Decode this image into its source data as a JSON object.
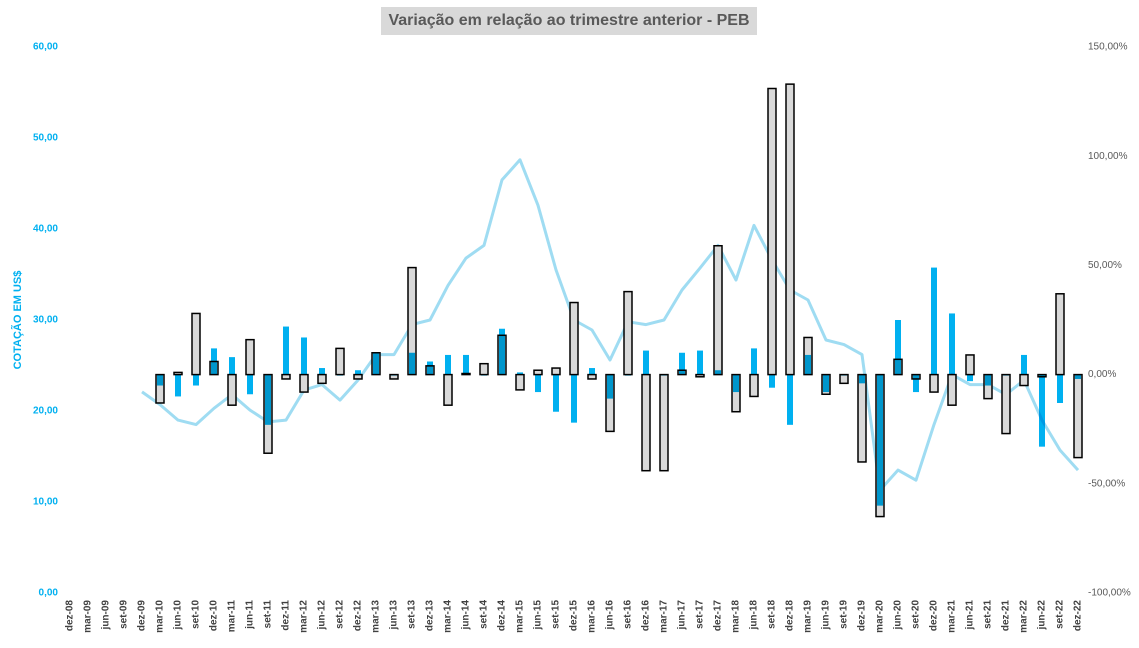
{
  "chart_data": {
    "type": "bar",
    "title": "Variação em relação ao trimestre anterior - PEB",
    "ylabel": "COTAÇÃO EM US$",
    "categories": [
      "dez-08",
      "mar-09",
      "jun-09",
      "set-09",
      "dez-09",
      "mar-10",
      "jun-10",
      "set-10",
      "dez-10",
      "mar-11",
      "jun-11",
      "set-11",
      "dez-11",
      "mar-12",
      "jun-12",
      "set-12",
      "dez-12",
      "mar-13",
      "jun-13",
      "set-13",
      "dez-13",
      "mar-14",
      "jun-14",
      "set-14",
      "dez-14",
      "mar-15",
      "jun-15",
      "set-15",
      "dez-15",
      "mar-16",
      "jun-16",
      "set-16",
      "dez-16",
      "mar-17",
      "jun-17",
      "set-17",
      "dez-17",
      "mar-18",
      "jun-18",
      "set-18",
      "dez-18",
      "mar-19",
      "jun-19",
      "set-19",
      "dez-19",
      "mar-20",
      "jun-20",
      "set-20",
      "dez-20",
      "mar-21",
      "jun-21",
      "set-21",
      "dez-21",
      "mar-22",
      "jun-22",
      "set-22",
      "dez-22"
    ],
    "ylim": [
      0,
      60
    ],
    "yticks": [
      {
        "value": 0,
        "label": "0,00"
      },
      {
        "value": 10,
        "label": "10,00"
      },
      {
        "value": 20,
        "label": "20,00"
      },
      {
        "value": 30,
        "label": "30,00"
      },
      {
        "value": 40,
        "label": "40,00"
      },
      {
        "value": 50,
        "label": "50,00"
      },
      {
        "value": 60,
        "label": "60,00"
      }
    ],
    "y2lim": [
      -100,
      150
    ],
    "y2ticks": [
      {
        "value": -100,
        "label": "-100,00%"
      },
      {
        "value": -50,
        "label": "-50,00%"
      },
      {
        "value": 0,
        "label": "0,00%"
      },
      {
        "value": 50,
        "label": "50,00%"
      },
      {
        "value": 100,
        "label": "100,00%"
      },
      {
        "value": 150,
        "label": "150,00%"
      }
    ],
    "series": [
      {
        "type": "line",
        "color": "#9fdcf2",
        "values": [
          null,
          null,
          null,
          null,
          22.1,
          20.7,
          19.0,
          18.5,
          20.3,
          21.8,
          20.1,
          18.8,
          19.0,
          22.3,
          22.9,
          21.2,
          23.4,
          26.2,
          26.2,
          29.5,
          30.0,
          33.8,
          36.8,
          38.2,
          45.4,
          47.6,
          42.6,
          35.5,
          30.0,
          28.9,
          25.6,
          29.8,
          29.5,
          30.0,
          33.3,
          35.7,
          38.2,
          34.4,
          40.4,
          36.6,
          33.3,
          32.2,
          27.8,
          27.3,
          26.2,
          11.3,
          13.5,
          12.4,
          18.5,
          24.0,
          22.9,
          22.9,
          21.8,
          23.4,
          19.0,
          15.7,
          13.5
        ]
      },
      {
        "type": "bar",
        "axis": "y2",
        "color": "#00b0f0",
        "values": [
          null,
          null,
          null,
          null,
          null,
          -5,
          -10,
          -5,
          12,
          8,
          -9,
          -23,
          22,
          17,
          3,
          0,
          2,
          10,
          0,
          10,
          6,
          9,
          9,
          0,
          21,
          1,
          -8,
          -17,
          -22,
          3,
          -11,
          0,
          11,
          0,
          10,
          11,
          2,
          -8,
          12,
          -6,
          -23,
          9,
          -8,
          0,
          -4,
          -60,
          25,
          -8,
          49,
          28,
          -3,
          -5,
          0,
          9,
          -33,
          -13,
          -2
        ]
      },
      {
        "type": "bar",
        "axis": "y2",
        "color": "#d9d9d9",
        "edgecolor": "#000000",
        "values": [
          null,
          null,
          null,
          null,
          null,
          -13,
          1,
          28,
          6,
          -14,
          16,
          -36,
          -2,
          -8,
          -4,
          12,
          -2,
          10,
          -2,
          49,
          4,
          -14,
          0.5,
          5,
          18,
          -7,
          2,
          3,
          33,
          -2,
          -26,
          38,
          -44,
          -44,
          2,
          -1,
          59,
          -17,
          -10,
          131,
          133,
          17,
          -9,
          -4,
          -40,
          -65,
          7,
          -2,
          -8,
          -14,
          9,
          -11,
          -27,
          -5,
          -1,
          37,
          -38
        ]
      }
    ]
  }
}
